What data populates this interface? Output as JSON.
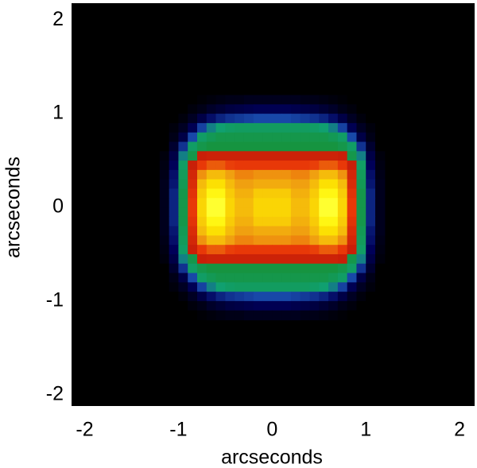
{
  "chart_data": {
    "type": "heatmap",
    "xlabel": "arcseconds",
    "ylabel": "arcseconds",
    "xlim": [
      -2.14,
      2.16
    ],
    "ylim": [
      -2.12,
      2.18
    ],
    "xticks": [
      -2,
      -1,
      0,
      1,
      2
    ],
    "yticks": [
      -2,
      -1,
      0,
      1,
      2
    ],
    "background": "#000000",
    "colormap": [
      [
        0,
        "#000000"
      ],
      [
        0.15,
        "#000058"
      ],
      [
        0.25,
        "#1848a8"
      ],
      [
        0.33,
        "#10a070"
      ],
      [
        0.45,
        "#189030"
      ],
      [
        0.52,
        "#c01808"
      ],
      [
        0.65,
        "#e83808"
      ],
      [
        0.8,
        "#f0a010"
      ],
      [
        0.95,
        "#fff000"
      ],
      [
        1,
        "#ffff30"
      ]
    ],
    "x": [
      -1.15,
      -1.05,
      -0.95,
      -0.85,
      -0.75,
      -0.65,
      -0.55,
      -0.45,
      -0.35,
      -0.25,
      -0.15,
      -0.05,
      0.05,
      0.15,
      0.25,
      0.35,
      0.45,
      0.55,
      0.65,
      0.75,
      0.85,
      0.95,
      1.05,
      1.15
    ],
    "y": [
      1.15,
      1.05,
      0.95,
      0.85,
      0.75,
      0.65,
      0.55,
      0.45,
      0.35,
      0.25,
      0.15,
      0.05,
      -0.05,
      -0.15,
      -0.25,
      -0.35,
      -0.45,
      -0.55,
      -0.65,
      -0.75,
      -0.85,
      -0.95,
      -1.05,
      -1.15
    ],
    "z": [
      [
        0,
        0,
        0,
        0,
        0.01,
        0.02,
        0.03,
        0.04,
        0.04,
        0.05,
        0.05,
        0.05,
        0.05,
        0.05,
        0.05,
        0.04,
        0.04,
        0.03,
        0.02,
        0.01,
        0,
        0,
        0,
        0
      ],
      [
        0,
        0,
        0,
        0.02,
        0.04,
        0.07,
        0.09,
        0.11,
        0.12,
        0.13,
        0.14,
        0.14,
        0.14,
        0.14,
        0.13,
        0.12,
        0.11,
        0.09,
        0.07,
        0.04,
        0.02,
        0,
        0,
        0
      ],
      [
        0,
        0,
        0.02,
        0.06,
        0.12,
        0.17,
        0.2,
        0.22,
        0.23,
        0.24,
        0.25,
        0.25,
        0.25,
        0.25,
        0.24,
        0.23,
        0.22,
        0.2,
        0.17,
        0.12,
        0.06,
        0.02,
        0,
        0
      ],
      [
        0,
        0.02,
        0.06,
        0.14,
        0.24,
        0.3,
        0.33,
        0.35,
        0.36,
        0.36,
        0.36,
        0.36,
        0.36,
        0.36,
        0.36,
        0.36,
        0.35,
        0.33,
        0.3,
        0.24,
        0.14,
        0.06,
        0.02,
        0
      ],
      [
        0,
        0.04,
        0.12,
        0.25,
        0.35,
        0.38,
        0.4,
        0.4,
        0.4,
        0.4,
        0.4,
        0.4,
        0.4,
        0.4,
        0.4,
        0.4,
        0.4,
        0.4,
        0.38,
        0.35,
        0.25,
        0.12,
        0.04,
        0
      ],
      [
        0,
        0.08,
        0.22,
        0.35,
        0.4,
        0.42,
        0.42,
        0.42,
        0.42,
        0.42,
        0.42,
        0.42,
        0.42,
        0.42,
        0.42,
        0.42,
        0.42,
        0.42,
        0.42,
        0.4,
        0.35,
        0.22,
        0.08,
        0
      ],
      [
        0.02,
        0.12,
        0.3,
        0.4,
        0.55,
        0.56,
        0.56,
        0.56,
        0.56,
        0.56,
        0.56,
        0.56,
        0.56,
        0.56,
        0.56,
        0.56,
        0.56,
        0.56,
        0.56,
        0.55,
        0.4,
        0.3,
        0.12,
        0.02
      ],
      [
        0.03,
        0.15,
        0.35,
        0.55,
        0.65,
        0.7,
        0.7,
        0.66,
        0.65,
        0.65,
        0.65,
        0.65,
        0.65,
        0.65,
        0.65,
        0.65,
        0.66,
        0.7,
        0.7,
        0.65,
        0.55,
        0.35,
        0.15,
        0.03
      ],
      [
        0.04,
        0.17,
        0.37,
        0.58,
        0.78,
        0.85,
        0.85,
        0.8,
        0.76,
        0.76,
        0.78,
        0.78,
        0.78,
        0.78,
        0.76,
        0.76,
        0.8,
        0.85,
        0.85,
        0.78,
        0.58,
        0.37,
        0.17,
        0.04
      ],
      [
        0.05,
        0.18,
        0.38,
        0.6,
        0.85,
        0.92,
        0.92,
        0.85,
        0.8,
        0.8,
        0.82,
        0.82,
        0.82,
        0.82,
        0.8,
        0.8,
        0.85,
        0.92,
        0.92,
        0.85,
        0.6,
        0.38,
        0.18,
        0.05
      ],
      [
        0.05,
        0.2,
        0.4,
        0.63,
        0.88,
        0.97,
        0.97,
        0.88,
        0.83,
        0.83,
        0.88,
        0.88,
        0.88,
        0.88,
        0.83,
        0.83,
        0.88,
        0.97,
        0.97,
        0.88,
        0.63,
        0.4,
        0.2,
        0.05
      ],
      [
        0.05,
        0.2,
        0.4,
        0.65,
        0.9,
        1,
        1,
        0.9,
        0.85,
        0.85,
        0.9,
        0.9,
        0.9,
        0.9,
        0.85,
        0.85,
        0.9,
        1,
        1,
        0.9,
        0.65,
        0.4,
        0.2,
        0.05
      ],
      [
        0.05,
        0.2,
        0.4,
        0.65,
        0.9,
        1,
        1,
        0.9,
        0.85,
        0.85,
        0.9,
        0.9,
        0.9,
        0.9,
        0.85,
        0.85,
        0.9,
        1,
        1,
        0.9,
        0.65,
        0.4,
        0.2,
        0.05
      ],
      [
        0.05,
        0.2,
        0.4,
        0.63,
        0.88,
        0.97,
        0.97,
        0.88,
        0.83,
        0.83,
        0.88,
        0.88,
        0.88,
        0.88,
        0.83,
        0.83,
        0.88,
        0.97,
        0.97,
        0.88,
        0.63,
        0.4,
        0.2,
        0.05
      ],
      [
        0.05,
        0.18,
        0.38,
        0.6,
        0.85,
        0.92,
        0.92,
        0.85,
        0.8,
        0.8,
        0.82,
        0.82,
        0.82,
        0.82,
        0.8,
        0.8,
        0.85,
        0.92,
        0.92,
        0.85,
        0.6,
        0.38,
        0.18,
        0.05
      ],
      [
        0.04,
        0.17,
        0.37,
        0.58,
        0.78,
        0.85,
        0.85,
        0.8,
        0.76,
        0.76,
        0.78,
        0.78,
        0.78,
        0.78,
        0.76,
        0.76,
        0.8,
        0.85,
        0.85,
        0.78,
        0.58,
        0.37,
        0.17,
        0.04
      ],
      [
        0.03,
        0.15,
        0.35,
        0.55,
        0.65,
        0.7,
        0.7,
        0.66,
        0.65,
        0.65,
        0.65,
        0.65,
        0.65,
        0.65,
        0.65,
        0.65,
        0.66,
        0.7,
        0.7,
        0.65,
        0.55,
        0.35,
        0.15,
        0.03
      ],
      [
        0.02,
        0.12,
        0.3,
        0.4,
        0.55,
        0.56,
        0.56,
        0.56,
        0.56,
        0.56,
        0.56,
        0.56,
        0.56,
        0.56,
        0.56,
        0.56,
        0.56,
        0.56,
        0.56,
        0.55,
        0.4,
        0.3,
        0.12,
        0.02
      ],
      [
        0,
        0.08,
        0.22,
        0.35,
        0.4,
        0.42,
        0.42,
        0.42,
        0.42,
        0.42,
        0.42,
        0.42,
        0.42,
        0.42,
        0.42,
        0.42,
        0.42,
        0.42,
        0.42,
        0.4,
        0.35,
        0.22,
        0.08,
        0
      ],
      [
        0,
        0.04,
        0.12,
        0.25,
        0.35,
        0.38,
        0.4,
        0.4,
        0.4,
        0.4,
        0.4,
        0.4,
        0.4,
        0.4,
        0.4,
        0.4,
        0.4,
        0.4,
        0.38,
        0.35,
        0.25,
        0.12,
        0.04,
        0
      ],
      [
        0,
        0.02,
        0.06,
        0.14,
        0.24,
        0.3,
        0.33,
        0.35,
        0.36,
        0.36,
        0.36,
        0.36,
        0.36,
        0.36,
        0.36,
        0.36,
        0.35,
        0.33,
        0.3,
        0.24,
        0.14,
        0.06,
        0.02,
        0
      ],
      [
        0,
        0,
        0.02,
        0.06,
        0.12,
        0.17,
        0.2,
        0.22,
        0.23,
        0.24,
        0.25,
        0.25,
        0.25,
        0.25,
        0.24,
        0.23,
        0.22,
        0.2,
        0.17,
        0.12,
        0.06,
        0.02,
        0,
        0
      ],
      [
        0,
        0,
        0,
        0.02,
        0.04,
        0.07,
        0.09,
        0.11,
        0.12,
        0.13,
        0.14,
        0.14,
        0.14,
        0.14,
        0.13,
        0.12,
        0.11,
        0.09,
        0.07,
        0.04,
        0.02,
        0,
        0,
        0
      ],
      [
        0,
        0,
        0,
        0,
        0.01,
        0.02,
        0.03,
        0.04,
        0.04,
        0.05,
        0.05,
        0.05,
        0.05,
        0.05,
        0.05,
        0.04,
        0.04,
        0.03,
        0.02,
        0.01,
        0,
        0,
        0,
        0
      ]
    ]
  }
}
